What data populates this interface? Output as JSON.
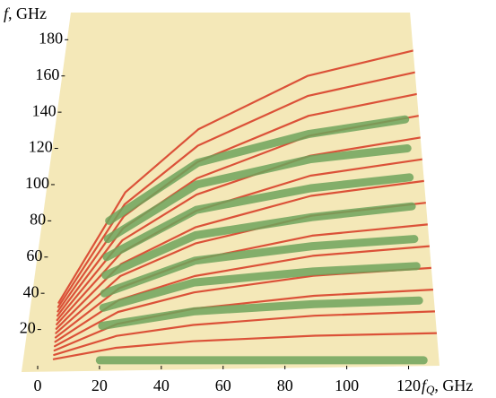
{
  "chart_data": {
    "type": "line",
    "y_label_symbol": "f",
    "y_label_unit": ", GHz",
    "x_label_symbol": "f",
    "x_label_subscript": "Q",
    "x_label_unit": ", GHz",
    "xlim": [
      0,
      130
    ],
    "ylim": [
      0,
      195
    ],
    "xticks": [
      0,
      20,
      40,
      60,
      80,
      100,
      120
    ],
    "yticks": [
      20,
      40,
      60,
      80,
      100,
      120,
      140,
      160,
      180
    ],
    "surface_color": "#f4e8b8",
    "x": [
      5,
      25,
      50,
      90,
      130
    ],
    "series": [
      {
        "color": "#d8402a",
        "values": [
          3.6,
          9.9,
          13.5,
          16.6,
          18
        ]
      },
      {
        "color": "#d8402a",
        "values": [
          6,
          16.5,
          22.5,
          27.6,
          30
        ]
      },
      {
        "color": "#d8402a",
        "values": [
          8.4,
          23.1,
          31.5,
          38.6,
          42
        ]
      },
      {
        "color": "#d8402a",
        "values": [
          10.8,
          29.7,
          40.5,
          49.7,
          54
        ]
      },
      {
        "color": "#d8402a",
        "values": [
          13.2,
          36.3,
          49.5,
          60.7,
          66
        ]
      },
      {
        "color": "#d8402a",
        "values": [
          15.6,
          42.9,
          58.5,
          71.8,
          78
        ]
      },
      {
        "color": "#d8402a",
        "values": [
          18,
          49.5,
          67.5,
          82.8,
          90
        ]
      },
      {
        "color": "#d8402a",
        "values": [
          20.4,
          56.1,
          76.5,
          93.8,
          102
        ]
      },
      {
        "color": "#d8402a",
        "values": [
          22.8,
          62.7,
          85.5,
          104.9,
          114
        ]
      },
      {
        "color": "#d8402a",
        "values": [
          25.2,
          69.3,
          94.5,
          115.9,
          126
        ]
      },
      {
        "color": "#d8402a",
        "values": [
          27.6,
          75.9,
          103.5,
          127,
          138
        ]
      },
      {
        "color": "#d8402a",
        "values": [
          30,
          82.5,
          112.5,
          138,
          150
        ]
      },
      {
        "color": "#d8402a",
        "values": [
          32.4,
          89.1,
          121.5,
          149,
          162
        ]
      },
      {
        "color": "#d8402a",
        "values": [
          34.8,
          95.7,
          130.5,
          160,
          174
        ]
      }
    ],
    "bands_x": [
      20,
      50,
      90,
      125
    ],
    "bands": [
      {
        "color": "#6fa35c",
        "values": [
          3,
          3,
          3,
          3
        ]
      },
      {
        "color": "#6fa35c",
        "values": [
          22,
          30,
          34,
          36
        ]
      },
      {
        "color": "#6fa35c",
        "values": [
          32,
          46,
          52,
          55
        ]
      },
      {
        "color": "#6fa35c",
        "values": [
          40,
          58,
          66,
          70
        ]
      },
      {
        "color": "#6fa35c",
        "values": [
          50,
          72,
          82,
          88
        ]
      },
      {
        "color": "#6fa35c",
        "values": [
          60,
          86,
          98,
          104
        ]
      },
      {
        "color": "#6fa35c",
        "values": [
          70,
          100,
          114,
          120
        ]
      },
      {
        "color": "#6fa35c",
        "values": [
          80,
          112,
          128,
          136
        ]
      }
    ]
  }
}
